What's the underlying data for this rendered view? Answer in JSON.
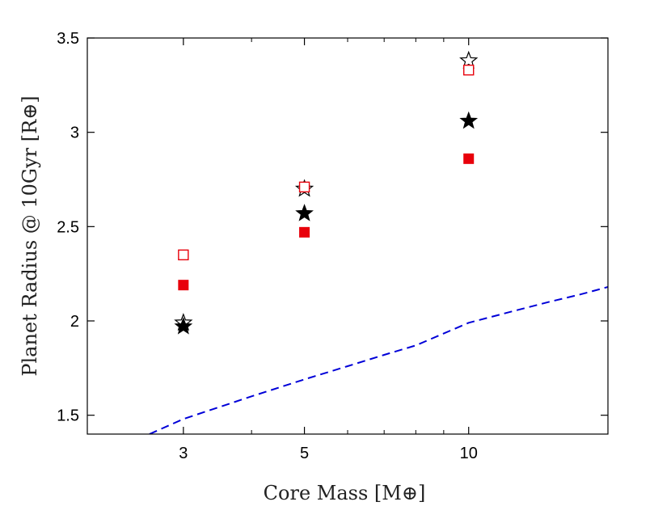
{
  "chart_data": {
    "type": "scatter",
    "title": "",
    "xlabel": "Core Mass [M⊕]",
    "ylabel": "Planet Radius @ 10Gyr [R⊕]",
    "xscale": "log",
    "xlim": [
      2.0,
      18.0
    ],
    "ylim": [
      1.4,
      3.5
    ],
    "xticks": [
      3,
      5,
      10
    ],
    "xtick_labels": [
      "3",
      "5",
      "10"
    ],
    "yticks": [
      1.5,
      2,
      2.5,
      3,
      3.5
    ],
    "ytick_labels": [
      "1.5",
      "2",
      "2.5",
      "3",
      "3.5"
    ],
    "grid": false,
    "legend": null,
    "series": [
      {
        "name": "open-star",
        "marker": "star-open",
        "color": "#000000",
        "x": [
          3,
          5,
          10
        ],
        "y": [
          1.99,
          2.7,
          3.38
        ]
      },
      {
        "name": "filled-star",
        "marker": "star-filled",
        "color": "#000000",
        "x": [
          3,
          5,
          10
        ],
        "y": [
          1.97,
          2.57,
          3.06
        ]
      },
      {
        "name": "open-square",
        "marker": "square-open",
        "color": "#e8000b",
        "x": [
          3,
          5,
          10
        ],
        "y": [
          2.35,
          2.71,
          3.33
        ]
      },
      {
        "name": "filled-square",
        "marker": "square-filled",
        "color": "#e8000b",
        "x": [
          3,
          5,
          10
        ],
        "y": [
          2.19,
          2.47,
          2.86
        ]
      },
      {
        "name": "dashed-curve",
        "marker": "line-dashed",
        "color": "#0000d8",
        "x": [
          2.6,
          3,
          4,
          5,
          6,
          7,
          8,
          10,
          12,
          14,
          16,
          18
        ],
        "y": [
          1.4,
          1.48,
          1.6,
          1.69,
          1.76,
          1.82,
          1.87,
          1.99,
          2.05,
          2.1,
          2.14,
          2.18
        ]
      }
    ]
  }
}
